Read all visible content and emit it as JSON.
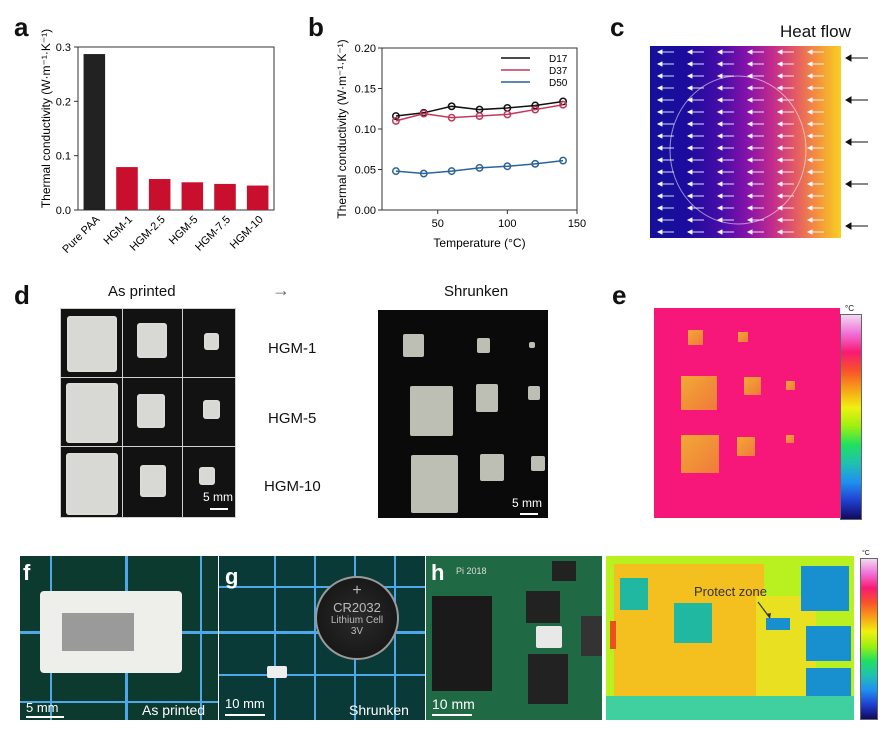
{
  "panels": {
    "a": {
      "label": "a"
    },
    "b": {
      "label": "b"
    },
    "c": {
      "label": "c",
      "title": "Heat flow"
    },
    "d": {
      "label": "d",
      "left_title": "As printed",
      "right_title": "Shrunken",
      "arrow": "→",
      "rows": [
        "HGM-1",
        "HGM-5",
        "HGM-10"
      ],
      "scale_left": "5 mm",
      "scale_right": "5 mm"
    },
    "e": {
      "label": "e",
      "colorbar_unit": "°C"
    },
    "f": {
      "label": "f",
      "scale": "5 mm",
      "caption": "As printed"
    },
    "g": {
      "label": "g",
      "scale": "10 mm",
      "caption": "Shrunken",
      "battery_line1": "CR2032",
      "battery_line2": "Lithium Cell",
      "battery_line3": "3V",
      "battery_plus": "+"
    },
    "h": {
      "label": "h",
      "scale": "10 mm",
      "board_text": "Pi 2018"
    },
    "i": {
      "annotation": "Protect zone",
      "colorbar_unit": "°C"
    }
  },
  "chart_data": [
    {
      "type": "bar",
      "title": "",
      "xlabel": "",
      "ylabel": "Thermal conductivity (W·m⁻¹·K⁻¹)",
      "categories": [
        "Pure PAA",
        "HGM-1",
        "HGM-2.5",
        "HGM-5",
        "HGM-7.5",
        "HGM-10"
      ],
      "values": [
        0.287,
        0.079,
        0.057,
        0.051,
        0.048,
        0.045
      ],
      "colors": [
        "#222222",
        "#c8102e",
        "#c8102e",
        "#c8102e",
        "#c8102e",
        "#c8102e"
      ],
      "ylim": [
        0,
        0.3
      ],
      "yticks": [
        "0.0",
        "0.1",
        "0.2",
        "0.3"
      ],
      "grid": false
    },
    {
      "type": "line",
      "title": "",
      "xlabel": "Temperature (°C)",
      "ylabel": "Thermal conductivity (W·m⁻¹·K⁻¹)",
      "x": [
        20,
        40,
        60,
        80,
        100,
        120,
        140
      ],
      "xlim": [
        10,
        150
      ],
      "ylim": [
        0,
        0.2
      ],
      "xticks": [
        "50",
        "100",
        "150"
      ],
      "yticks": [
        "0.00",
        "0.05",
        "0.10",
        "0.15",
        "0.20"
      ],
      "legend": "top-right",
      "grid": false,
      "series": [
        {
          "name": "D17",
          "color": "#111111",
          "values": [
            0.116,
            0.12,
            0.128,
            0.124,
            0.126,
            0.129,
            0.134
          ]
        },
        {
          "name": "D37",
          "color": "#c0395a",
          "values": [
            0.11,
            0.119,
            0.114,
            0.116,
            0.118,
            0.124,
            0.13
          ]
        },
        {
          "name": "D50",
          "color": "#2a6496",
          "values": [
            0.048,
            0.045,
            0.048,
            0.052,
            0.054,
            0.057,
            0.061
          ]
        }
      ]
    }
  ]
}
